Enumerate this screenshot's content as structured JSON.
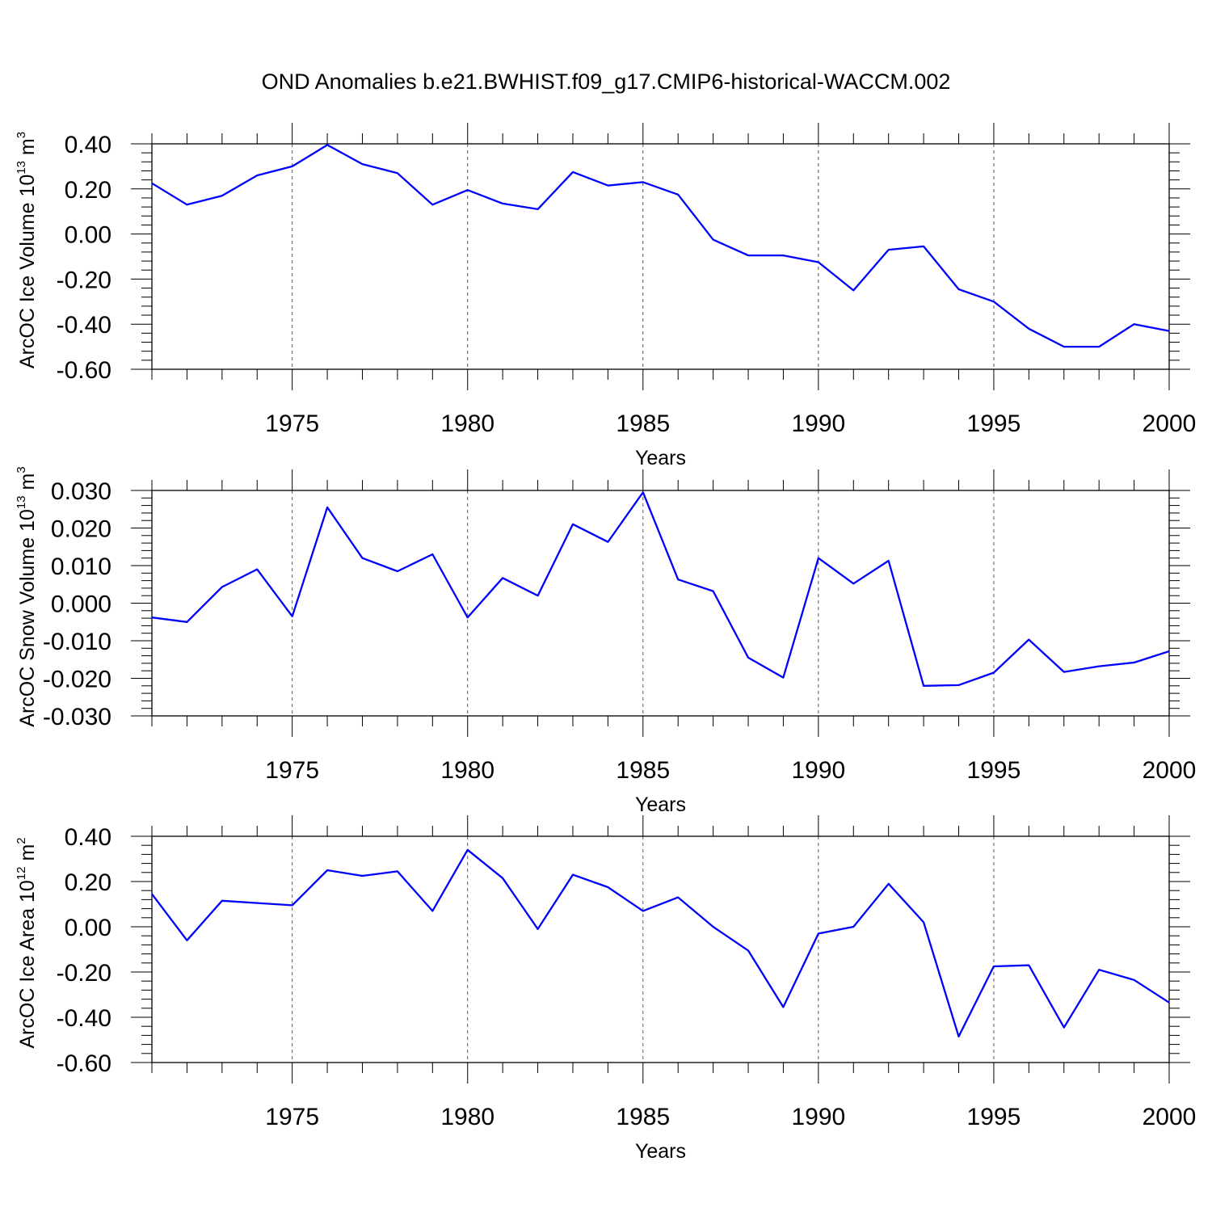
{
  "figure_title": "OND Anomalies b.e21.BWHIST.f09_g17.CMIP6-historical-WACCM.002",
  "line_color": "#0000ff",
  "chart_data": [
    {
      "type": "line",
      "xlabel": "Years",
      "ylabel": {
        "text": "ArcOC Ice Volume 10",
        "exp": "13",
        "unit": " m",
        "unit_exp": "3"
      },
      "xlim": [
        1971,
        2000
      ],
      "ylim": [
        -0.6,
        0.4
      ],
      "x_ticks": [
        "1975",
        "1980",
        "1985",
        "1990",
        "1995",
        "2000"
      ],
      "y_ticks": [
        "0.40",
        "0.20",
        "0.00",
        "-0.20",
        "-0.40",
        "-0.60"
      ],
      "y_tick_values": [
        0.4,
        0.2,
        0.0,
        -0.2,
        -0.4,
        -0.6
      ],
      "grid": "vertical dashed at major x ticks",
      "x": [
        1971,
        1972,
        1973,
        1974,
        1975,
        1976,
        1977,
        1978,
        1979,
        1980,
        1981,
        1982,
        1983,
        1984,
        1985,
        1986,
        1987,
        1988,
        1989,
        1990,
        1991,
        1992,
        1993,
        1994,
        1995,
        1996,
        1997,
        1998,
        1999,
        2000
      ],
      "values": [
        0.225,
        0.13,
        0.17,
        0.26,
        0.3,
        0.395,
        0.31,
        0.27,
        0.13,
        0.195,
        0.135,
        0.11,
        0.275,
        0.215,
        0.23,
        0.175,
        -0.025,
        -0.095,
        -0.095,
        -0.125,
        -0.25,
        -0.07,
        -0.055,
        -0.245,
        -0.3,
        -0.42,
        -0.5,
        -0.5,
        -0.4,
        -0.43
      ]
    },
    {
      "type": "line",
      "xlabel": "Years",
      "ylabel": {
        "text": "ArcOC Snow Volume 10",
        "exp": "13",
        "unit": " m",
        "unit_exp": "3"
      },
      "xlim": [
        1971,
        2000
      ],
      "ylim": [
        -0.03,
        0.03
      ],
      "x_ticks": [
        "1975",
        "1980",
        "1985",
        "1990",
        "1995",
        "2000"
      ],
      "y_ticks": [
        "0.030",
        "0.020",
        "0.010",
        "0.000",
        "-0.010",
        "-0.020",
        "-0.030"
      ],
      "y_tick_values": [
        0.03,
        0.02,
        0.01,
        0.0,
        -0.01,
        -0.02,
        -0.03
      ],
      "grid": "vertical dashed at major x ticks",
      "x": [
        1971,
        1972,
        1973,
        1974,
        1975,
        1976,
        1977,
        1978,
        1979,
        1980,
        1981,
        1982,
        1983,
        1984,
        1985,
        1986,
        1987,
        1988,
        1989,
        1990,
        1991,
        1992,
        1993,
        1994,
        1995,
        1996,
        1997,
        1998,
        1999,
        2000
      ],
      "values": [
        -0.0038,
        -0.005,
        0.0043,
        0.009,
        -0.0035,
        0.0255,
        0.012,
        0.0085,
        0.013,
        -0.0038,
        0.0067,
        0.002,
        0.021,
        0.0163,
        0.0295,
        0.0063,
        0.0032,
        -0.0145,
        -0.0198,
        0.012,
        0.0052,
        0.0113,
        -0.022,
        -0.0218,
        -0.0185,
        -0.0097,
        -0.0183,
        -0.0168,
        -0.0158,
        -0.0128
      ]
    },
    {
      "type": "line",
      "xlabel": "Years",
      "ylabel": {
        "text": "ArcOC Ice Area 10",
        "exp": "12",
        "unit": " m",
        "unit_exp": "2"
      },
      "xlim": [
        1971,
        2000
      ],
      "ylim": [
        -0.6,
        0.4
      ],
      "x_ticks": [
        "1975",
        "1980",
        "1985",
        "1990",
        "1995",
        "2000"
      ],
      "y_ticks": [
        "0.40",
        "0.20",
        "0.00",
        "-0.20",
        "-0.40",
        "-0.60"
      ],
      "y_tick_values": [
        0.4,
        0.2,
        0.0,
        -0.2,
        -0.4,
        -0.6
      ],
      "grid": "vertical dashed at major x ticks",
      "x": [
        1971,
        1972,
        1973,
        1974,
        1975,
        1976,
        1977,
        1978,
        1979,
        1980,
        1981,
        1982,
        1983,
        1984,
        1985,
        1986,
        1987,
        1988,
        1989,
        1990,
        1991,
        1992,
        1993,
        1994,
        1995,
        1996,
        1997,
        1998,
        1999,
        2000
      ],
      "values": [
        0.145,
        -0.06,
        0.115,
        0.105,
        0.095,
        0.25,
        0.225,
        0.245,
        0.07,
        0.34,
        0.215,
        -0.01,
        0.23,
        0.175,
        0.07,
        0.13,
        0.0,
        -0.105,
        -0.355,
        -0.03,
        0.0,
        0.19,
        0.02,
        -0.485,
        -0.175,
        -0.17,
        -0.445,
        -0.19,
        -0.235,
        -0.335
      ]
    }
  ]
}
